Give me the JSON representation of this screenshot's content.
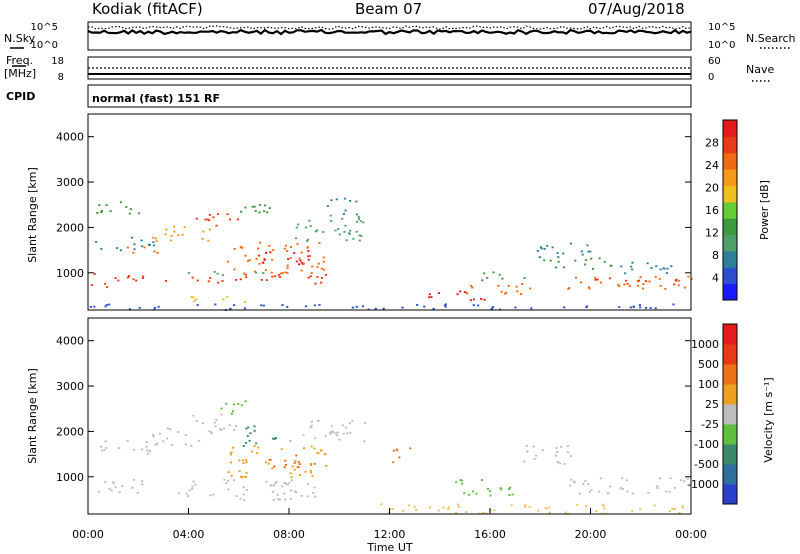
{
  "header": {
    "title_left": "Kodiak (fitACF)",
    "title_center": "Beam 07",
    "title_right": "07/Aug/2018"
  },
  "strip_labels": {
    "nsky": "N.Sky",
    "nsearch": "N.Search",
    "freq_line1": "Freq.",
    "freq_line2": "[MHz]",
    "nave": "Nave",
    "cpid": "CPID",
    "cpid_text": "normal (fast) 151 RF",
    "noise_left_top": "10^5",
    "noise_left_bottom": "10^0",
    "noise_right_top": "10^5",
    "noise_right_bottom": "10^0",
    "freq_left_top": "18",
    "freq_left_bottom": "8",
    "nave_right_top": "60",
    "nave_right_bottom": "0"
  },
  "chart_data": [
    {
      "type": "heatmap",
      "panel": "power",
      "ylabel": "Slant Range [km]",
      "ylim": [
        180,
        4500
      ],
      "yticks": [
        1000,
        2000,
        3000,
        4000
      ],
      "xlim": [
        0,
        24
      ],
      "colorbar": {
        "label": "Power [dB]",
        "ticks": [
          "4",
          "8",
          "12",
          "16",
          "20",
          "24",
          "28"
        ],
        "colors": [
          "#1a1aff",
          "#2b4fd0",
          "#2f7f9a",
          "#4fa06a",
          "#3d9a3d",
          "#66cc33",
          "#f0c020",
          "#f59a1a",
          "#f06a14",
          "#e83a14",
          "#e61a1a"
        ]
      },
      "bands": [
        {
          "t": [
            0.0,
            2.2
          ],
          "r": [
            700,
            1000
          ],
          "c": "#e83a14"
        },
        {
          "t": [
            0.2,
            2.6
          ],
          "r": [
            1500,
            1800
          ],
          "c": "#2f7f9a"
        },
        {
          "t": [
            1.5,
            3.2
          ],
          "r": [
            1450,
            1600
          ],
          "c": "#f06a14"
        },
        {
          "t": [
            0.3,
            2.3
          ],
          "r": [
            2300,
            2600
          ],
          "c": "#3d9a3d"
        },
        {
          "t": [
            2.5,
            5.0
          ],
          "r": [
            1700,
            2050
          ],
          "c": "#f59a1a"
        },
        {
          "t": [
            4.0,
            6.0
          ],
          "r": [
            2050,
            2350
          ],
          "c": "#e83a14"
        },
        {
          "t": [
            5.5,
            9.5
          ],
          "r": [
            1000,
            1700
          ],
          "c": "#f06a14"
        },
        {
          "t": [
            6.5,
            9.0
          ],
          "r": [
            1200,
            1500
          ],
          "c": "#e61a1a"
        },
        {
          "t": [
            3.0,
            9.5
          ],
          "r": [
            780,
            980
          ],
          "c": "#e83a14"
        },
        {
          "t": [
            3.5,
            7.0
          ],
          "r": [
            950,
            1050
          ],
          "c": "#4fa06a"
        },
        {
          "t": [
            8.0,
            11.0
          ],
          "r": [
            1700,
            2300
          ],
          "c": "#4fa06a"
        },
        {
          "t": [
            9.5,
            10.8
          ],
          "r": [
            2300,
            2700
          ],
          "c": "#2f7f9a"
        },
        {
          "t": [
            6.0,
            8.0
          ],
          "r": [
            2300,
            2600
          ],
          "c": "#3d9a3d"
        },
        {
          "t": [
            4.0,
            6.5
          ],
          "r": [
            350,
            500
          ],
          "c": "#f0c020"
        },
        {
          "t": [
            13.5,
            16.0
          ],
          "r": [
            400,
            650
          ],
          "c": "#e61a1a"
        },
        {
          "t": [
            15.0,
            18.0
          ],
          "r": [
            550,
            800
          ],
          "c": "#f06a14"
        },
        {
          "t": [
            15.5,
            17.5
          ],
          "r": [
            850,
            1050
          ],
          "c": "#3d9a3d"
        },
        {
          "t": [
            17.5,
            20.0
          ],
          "r": [
            1350,
            1700
          ],
          "c": "#2f7f9a"
        },
        {
          "t": [
            18.0,
            21.0
          ],
          "r": [
            1100,
            1350
          ],
          "c": "#3d9a3d"
        },
        {
          "t": [
            19.0,
            24.0
          ],
          "r": [
            650,
            950
          ],
          "c": "#f06a14"
        },
        {
          "t": [
            20.0,
            23.5
          ],
          "r": [
            750,
            900
          ],
          "c": "#e83a14"
        },
        {
          "t": [
            21.0,
            24.0
          ],
          "r": [
            1000,
            1250
          ],
          "c": "#2f7f9a"
        },
        {
          "t": [
            0.0,
            24.0
          ],
          "r": [
            200,
            330
          ],
          "c": "#2b4fd0"
        }
      ]
    },
    {
      "type": "heatmap",
      "panel": "velocity",
      "ylabel": "Slant Range [km]",
      "xlabel": "Time UT",
      "ylim": [
        180,
        4500
      ],
      "yticks": [
        1000,
        2000,
        3000,
        4000
      ],
      "xlim": [
        0,
        24
      ],
      "xticks": [
        "00:00",
        "04:00",
        "08:00",
        "12:00",
        "16:00",
        "20:00",
        "00:00"
      ],
      "colorbar": {
        "label": "Velocity [m s⁻¹]",
        "ticks": [
          "1000",
          "500",
          "100",
          "25",
          "-25",
          "-100",
          "-500",
          "-1000"
        ],
        "colors": [
          "#2a3fcc",
          "#2f6fa0",
          "#3a8a6a",
          "#5fc040",
          "#bdbdbd",
          "#f0a020",
          "#f07018",
          "#e83a14",
          "#e61a1a"
        ]
      },
      "bands": [
        {
          "t": [
            0.0,
            2.2
          ],
          "r": [
            650,
            1000
          ],
          "c": "#bdbdbd"
        },
        {
          "t": [
            0.3,
            2.5
          ],
          "r": [
            1500,
            1850
          ],
          "c": "#bdbdbd"
        },
        {
          "t": [
            2.5,
            5.0
          ],
          "r": [
            1700,
            2100
          ],
          "c": "#bdbdbd"
        },
        {
          "t": [
            4.0,
            6.0
          ],
          "r": [
            2050,
            2400
          ],
          "c": "#bdbdbd"
        },
        {
          "t": [
            5.0,
            6.5
          ],
          "r": [
            2400,
            2700
          ],
          "c": "#5fc040"
        },
        {
          "t": [
            5.5,
            9.5
          ],
          "r": [
            1000,
            1700
          ],
          "c": "#f0a020"
        },
        {
          "t": [
            7.0,
            9.0
          ],
          "r": [
            1200,
            1500
          ],
          "c": "#f07018"
        },
        {
          "t": [
            3.5,
            9.0
          ],
          "r": [
            500,
            1000
          ],
          "c": "#bdbdbd"
        },
        {
          "t": [
            8.0,
            11.0
          ],
          "r": [
            1800,
            2300
          ],
          "c": "#bdbdbd"
        },
        {
          "t": [
            6.0,
            7.5
          ],
          "r": [
            1700,
            2200
          ],
          "c": "#3a8a6a"
        },
        {
          "t": [
            12.0,
            12.8
          ],
          "r": [
            1300,
            1700
          ],
          "c": "#f07018"
        },
        {
          "t": [
            14.5,
            17.0
          ],
          "r": [
            600,
            1000
          ],
          "c": "#5fc040"
        },
        {
          "t": [
            17.0,
            19.5
          ],
          "r": [
            1300,
            1700
          ],
          "c": "#bdbdbd"
        },
        {
          "t": [
            19.0,
            24.0
          ],
          "r": [
            650,
            1000
          ],
          "c": "#bdbdbd"
        },
        {
          "t": [
            11.0,
            24.0
          ],
          "r": [
            200,
            420
          ],
          "c": "#f0c060"
        }
      ]
    }
  ]
}
